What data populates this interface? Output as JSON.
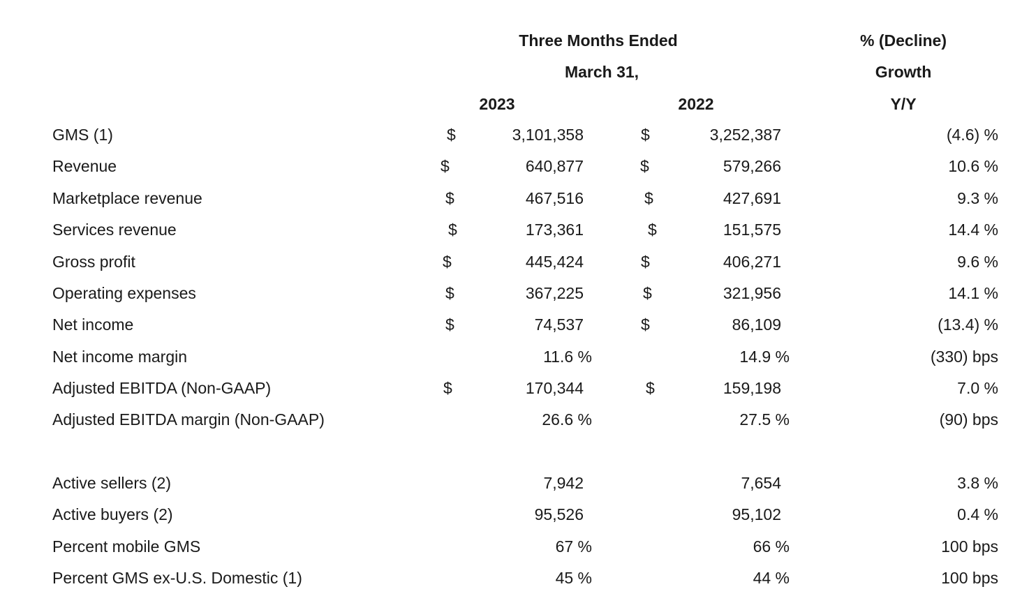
{
  "header": {
    "period_line1": "Three Months Ended",
    "period_line2": "March 31,",
    "year_current": "2023",
    "year_prior": "2022",
    "growth_line1": "% (Decline)",
    "growth_line2": "Growth",
    "growth_line3": "Y/Y"
  },
  "rows": [
    {
      "label": "GMS (1)",
      "d1": "$",
      "v1": "3,101,358",
      "d2": "$",
      "v2": "3,252,387",
      "g": "(4.6) %"
    },
    {
      "label": "Revenue",
      "d1": "$",
      "v1": "640,877",
      "d2": "$",
      "v2": "579,266",
      "g": "10.6 %"
    },
    {
      "label": "Marketplace revenue",
      "d1": "$",
      "v1": "467,516",
      "d2": "$",
      "v2": "427,691",
      "g": "9.3 %"
    },
    {
      "label": "Services revenue",
      "d1": "$",
      "v1": "173,361",
      "d2": "$",
      "v2": "151,575",
      "g": "14.4 %"
    },
    {
      "label": "Gross profit",
      "d1": "$",
      "v1": "445,424",
      "d2": "$",
      "v2": "406,271",
      "g": "9.6 %"
    },
    {
      "label": "Operating expenses",
      "d1": "$",
      "v1": "367,225",
      "d2": "$",
      "v2": "321,956",
      "g": "14.1 %"
    },
    {
      "label": "Net income",
      "d1": "$",
      "v1": "74,537",
      "d2": "$",
      "v2": "86,109",
      "g": "(13.4) %"
    },
    {
      "label": "Net income margin",
      "d1": "",
      "v1": "11.6 %",
      "d2": "",
      "v2": "14.9 %",
      "g": "(330) bps"
    },
    {
      "label": "Adjusted EBITDA (Non-GAAP)",
      "d1": "$",
      "v1": "170,344",
      "d2": "$",
      "v2": "159,198",
      "g": "7.0 %"
    },
    {
      "label": "Adjusted EBITDA margin (Non-GAAP)",
      "d1": "",
      "v1": "26.6 %",
      "d2": "",
      "v2": "27.5 %",
      "g": "(90) bps"
    },
    {
      "label": "Active sellers (2)",
      "d1": "",
      "v1": "7,942",
      "d2": "",
      "v2": "7,654",
      "g": "3.8 %"
    },
    {
      "label": "Active buyers (2)",
      "d1": "",
      "v1": "95,526",
      "d2": "",
      "v2": "95,102",
      "g": "0.4 %"
    },
    {
      "label": "Percent mobile GMS",
      "d1": "",
      "v1": "67 %",
      "d2": "",
      "v2": "66 %",
      "g": "100 bps"
    },
    {
      "label": "Percent GMS ex-U.S. Domestic (1)",
      "d1": "",
      "v1": "45 %",
      "d2": "",
      "v2": "44 %",
      "g": "100 bps"
    }
  ]
}
